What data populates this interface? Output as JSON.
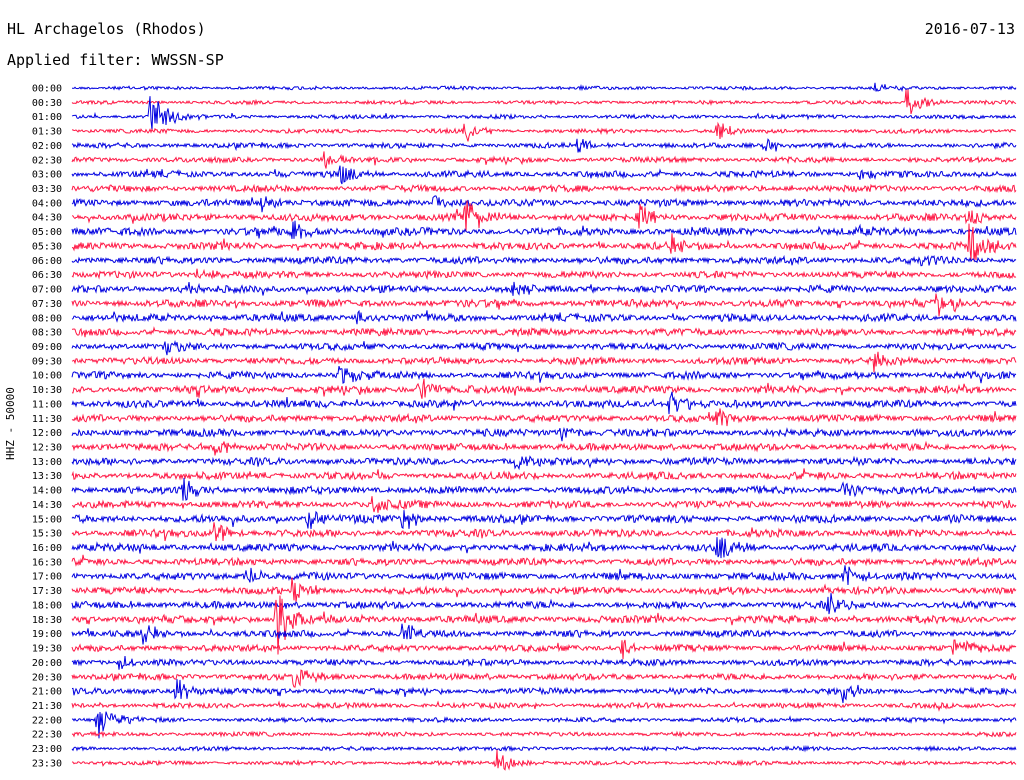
{
  "header": {
    "station": "HL Archagelos (Rhodos)",
    "date": "2016-07-13",
    "filter": "Applied filter: WWSSN-SP"
  },
  "chart_data": {
    "type": "line",
    "title": "HL Archagelos (Rhodos)",
    "subtitle": "Applied filter: WWSSN-SP",
    "date": "2016-07-13",
    "ylabel": "HHZ - 50000",
    "row_labels": [
      "00:00",
      "00:30",
      "01:00",
      "01:30",
      "02:00",
      "02:30",
      "03:00",
      "03:30",
      "04:00",
      "04:30",
      "05:00",
      "05:30",
      "06:00",
      "06:30",
      "07:00",
      "07:30",
      "08:00",
      "08:30",
      "09:00",
      "09:30",
      "10:00",
      "10:30",
      "11:00",
      "11:30",
      "12:00",
      "12:30",
      "13:00",
      "13:30",
      "14:00",
      "14:30",
      "15:00",
      "15:30",
      "16:00",
      "16:30",
      "17:00",
      "17:30",
      "18:00",
      "18:30",
      "19:00",
      "19:30",
      "20:00",
      "20:30",
      "21:00",
      "21:30",
      "22:00",
      "22:30",
      "23:00",
      "23:30"
    ],
    "row_colors": [
      "#0000e0",
      "#ff1744"
    ],
    "row_duration_minutes": 30,
    "noise_level_by_row": [
      0.2,
      0.25,
      0.3,
      0.35,
      0.5,
      0.55,
      0.7,
      0.75,
      0.85,
      0.9,
      0.95,
      0.9,
      0.85,
      0.8,
      0.85,
      0.9,
      0.9,
      0.85,
      0.8,
      0.8,
      0.85,
      0.9,
      0.9,
      0.85,
      0.9,
      0.85,
      0.85,
      0.85,
      0.9,
      0.85,
      0.95,
      0.9,
      0.9,
      0.85,
      0.9,
      0.85,
      0.85,
      0.9,
      0.8,
      0.75,
      0.7,
      0.7,
      0.65,
      0.5,
      0.4,
      0.35,
      0.3,
      0.3
    ],
    "events": [
      {
        "row": 2,
        "minute": 2.5,
        "amp": 3.2
      },
      {
        "row": 1,
        "minute": 26.5,
        "amp": 1.8
      },
      {
        "row": 0,
        "minute": 25.5,
        "amp": 0.6
      },
      {
        "row": 3,
        "minute": 12.5,
        "amp": 1.3
      },
      {
        "row": 3,
        "minute": 20.5,
        "amp": 1.4
      },
      {
        "row": 4,
        "minute": 16.0,
        "amp": 1.3
      },
      {
        "row": 4,
        "minute": 22.0,
        "amp": 0.8
      },
      {
        "row": 5,
        "minute": 8.0,
        "amp": 1.0
      },
      {
        "row": 6,
        "minute": 8.5,
        "amp": 1.3
      },
      {
        "row": 6,
        "minute": 25.0,
        "amp": 1.0
      },
      {
        "row": 8,
        "minute": 6.0,
        "amp": 1.1
      },
      {
        "row": 8,
        "minute": 11.5,
        "amp": 1.1
      },
      {
        "row": 9,
        "minute": 12.5,
        "amp": 2.2
      },
      {
        "row": 9,
        "minute": 18.0,
        "amp": 1.6
      },
      {
        "row": 9,
        "minute": 28.5,
        "amp": 1.2
      },
      {
        "row": 10,
        "minute": 7.0,
        "amp": 1.3
      },
      {
        "row": 11,
        "minute": 19.0,
        "amp": 1.3
      },
      {
        "row": 11,
        "minute": 28.5,
        "amp": 2.6
      },
      {
        "row": 12,
        "minute": 27.0,
        "amp": 1.2
      },
      {
        "row": 13,
        "minute": 4.0,
        "amp": 1.0
      },
      {
        "row": 14,
        "minute": 3.5,
        "amp": 1.0
      },
      {
        "row": 14,
        "minute": 14.0,
        "amp": 1.0
      },
      {
        "row": 15,
        "minute": 27.5,
        "amp": 1.7
      },
      {
        "row": 16,
        "minute": 9.0,
        "amp": 1.0
      },
      {
        "row": 18,
        "minute": 3.0,
        "amp": 1.1
      },
      {
        "row": 19,
        "minute": 25.5,
        "amp": 1.4
      },
      {
        "row": 20,
        "minute": 8.5,
        "amp": 1.5
      },
      {
        "row": 21,
        "minute": 11.0,
        "amp": 1.6
      },
      {
        "row": 22,
        "minute": 19.0,
        "amp": 1.7
      },
      {
        "row": 23,
        "minute": 20.5,
        "amp": 1.3
      },
      {
        "row": 24,
        "minute": 15.5,
        "amp": 1.3
      },
      {
        "row": 25,
        "minute": 4.5,
        "amp": 1.3
      },
      {
        "row": 26,
        "minute": 14.0,
        "amp": 1.1
      },
      {
        "row": 28,
        "minute": 3.5,
        "amp": 1.3
      },
      {
        "row": 28,
        "minute": 24.5,
        "amp": 1.2
      },
      {
        "row": 29,
        "minute": 9.5,
        "amp": 1.5
      },
      {
        "row": 30,
        "minute": 7.5,
        "amp": 1.4
      },
      {
        "row": 30,
        "minute": 10.5,
        "amp": 1.4
      },
      {
        "row": 31,
        "minute": 4.5,
        "amp": 1.4
      },
      {
        "row": 32,
        "minute": 20.5,
        "amp": 1.6
      },
      {
        "row": 34,
        "minute": 5.5,
        "amp": 1.3
      },
      {
        "row": 34,
        "minute": 24.5,
        "amp": 1.5
      },
      {
        "row": 35,
        "minute": 7.0,
        "amp": 1.5
      },
      {
        "row": 36,
        "minute": 24.0,
        "amp": 1.4
      },
      {
        "row": 37,
        "minute": 6.5,
        "amp": 4.5
      },
      {
        "row": 38,
        "minute": 2.2,
        "amp": 1.3
      },
      {
        "row": 38,
        "minute": 10.5,
        "amp": 1.3
      },
      {
        "row": 39,
        "minute": 17.5,
        "amp": 1.2
      },
      {
        "row": 39,
        "minute": 28.0,
        "amp": 1.3
      },
      {
        "row": 40,
        "minute": 1.5,
        "amp": 0.8
      },
      {
        "row": 41,
        "minute": 7.0,
        "amp": 1.9
      },
      {
        "row": 42,
        "minute": 3.3,
        "amp": 1.4
      },
      {
        "row": 42,
        "minute": 24.5,
        "amp": 1.3
      },
      {
        "row": 44,
        "minute": 0.8,
        "amp": 2.4
      },
      {
        "row": 47,
        "minute": 13.5,
        "amp": 1.4
      }
    ]
  }
}
